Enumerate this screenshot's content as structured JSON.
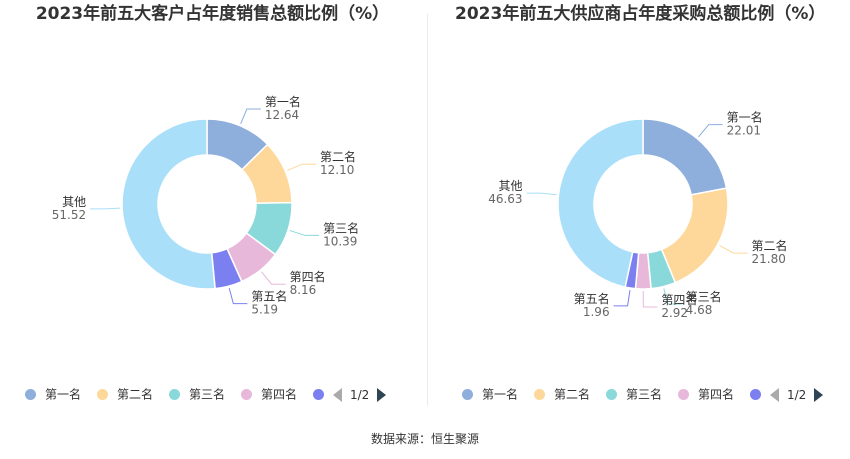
{
  "colors": [
    "#8eaedb",
    "#fdd89a",
    "#89d8da",
    "#e8b8da",
    "#7b7ff0",
    "#aadff9"
  ],
  "chart_data": [
    {
      "type": "pie",
      "title": "2023年前五大客户占年度销售总额比例（%）",
      "labels": [
        "第一名",
        "第二名",
        "第三名",
        "第四名",
        "第五名",
        "其他"
      ],
      "values": [
        12.64,
        12.1,
        10.39,
        8.16,
        5.19,
        51.52
      ],
      "value_labels": [
        "12.64",
        "12.10",
        "10.39",
        "8.16",
        "5.19",
        "51.52"
      ],
      "legend": {
        "position": "bottom",
        "items": [
          "第一名",
          "第二名",
          "第三名",
          "第四名",
          "第五名"
        ],
        "page": "1/2"
      }
    },
    {
      "type": "pie",
      "title": "2023年前五大供应商占年度采购总额比例（%）",
      "labels": [
        "第一名",
        "第二名",
        "第三名",
        "第四名",
        "第五名",
        "其他"
      ],
      "values": [
        22.01,
        21.8,
        4.68,
        2.92,
        1.96,
        46.63
      ],
      "value_labels": [
        "22.01",
        "21.80",
        "4.68",
        "2.92",
        "1.96",
        "46.63"
      ],
      "legend": {
        "position": "bottom",
        "items": [
          "第一名",
          "第二名",
          "第三名",
          "第四名",
          "第五名"
        ],
        "page": "1/2"
      }
    }
  ],
  "source": "数据来源：恒生聚源"
}
